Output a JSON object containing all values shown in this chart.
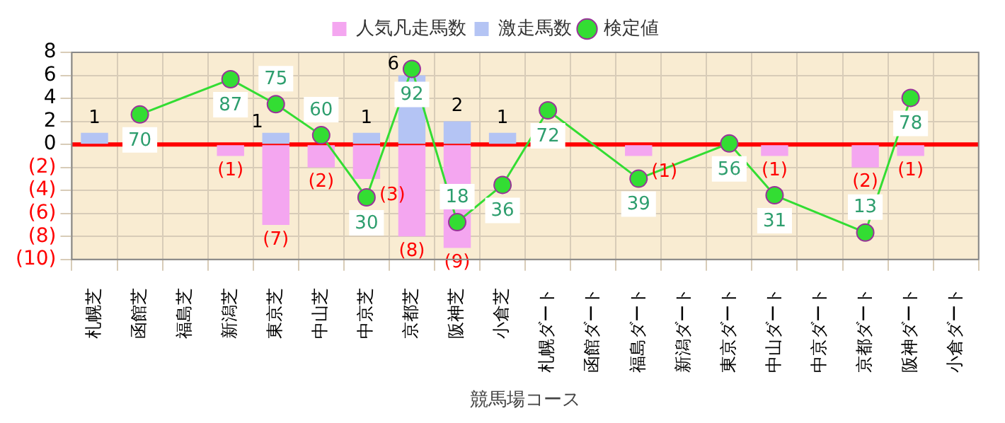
{
  "chart_data": {
    "type": "bar",
    "xlabel": "競馬場コース",
    "categories": [
      "札幌芝",
      "函館芝",
      "福島芝",
      "新潟芝",
      "東京芝",
      "中山芝",
      "中京芝",
      "京都芝",
      "阪神芝",
      "小倉芝",
      "札幌ダート",
      "函館ダート",
      "福島ダート",
      "新潟ダート",
      "東京ダート",
      "中山ダート",
      "中京ダート",
      "京都ダート",
      "阪神ダート",
      "小倉ダート"
    ],
    "stacked": true,
    "series": [
      {
        "name": "人気凡走馬数",
        "color": "#f4a6f0",
        "values": [
          null,
          null,
          null,
          -1,
          -7,
          -2,
          -3,
          -8,
          -9,
          null,
          null,
          null,
          -1,
          null,
          null,
          -1,
          null,
          -2,
          -1,
          null
        ],
        "value_labels": [
          null,
          null,
          null,
          "(1)",
          "(7)",
          "(2)",
          "(3)",
          "(8)",
          "(9)",
          null,
          null,
          null,
          "(1)",
          null,
          null,
          "(1)",
          null,
          "(2)",
          "(1)",
          null
        ]
      },
      {
        "name": "激走馬数",
        "color": "#b4c4f4",
        "values": [
          1,
          null,
          null,
          null,
          1,
          null,
          1,
          6,
          2,
          1,
          null,
          null,
          null,
          null,
          null,
          null,
          null,
          null,
          null,
          null
        ],
        "value_labels": [
          "1",
          null,
          null,
          null,
          "1",
          null,
          "1",
          "6",
          "2",
          "1",
          null,
          null,
          null,
          null,
          null,
          null,
          null,
          null,
          null,
          null
        ]
      },
      {
        "name": "検定値",
        "type": "line",
        "axis": "y2",
        "color": "#33dd33",
        "marker": "circle",
        "values": [
          null,
          70,
          null,
          87,
          75,
          60,
          30,
          92,
          18,
          36,
          72,
          null,
          39,
          null,
          56,
          31,
          null,
          13,
          78,
          null
        ],
        "value_labels": [
          null,
          "70",
          null,
          "87",
          "75",
          "60",
          "30",
          "92",
          "18",
          "36",
          "72",
          null,
          "39",
          null,
          "56",
          "31",
          null,
          "13",
          "78",
          null
        ]
      }
    ],
    "ylim": [
      -10,
      8
    ],
    "yticks": [
      8,
      6,
      4,
      2,
      0,
      {
        "value": -2,
        "label": "(2)"
      },
      {
        "value": -4,
        "label": "(4)"
      },
      {
        "value": -6,
        "label": "(6)"
      },
      {
        "value": -8,
        "label": "(8)"
      },
      {
        "value": -10,
        "label": "(10)"
      }
    ],
    "y2lim": [
      0,
      100
    ],
    "tick_labels": [
      "x",
      "y"
    ],
    "ref_lines": [
      {
        "axis": "y",
        "value": 0,
        "color": "#ff0000"
      }
    ],
    "grid": true,
    "legend": "top"
  }
}
